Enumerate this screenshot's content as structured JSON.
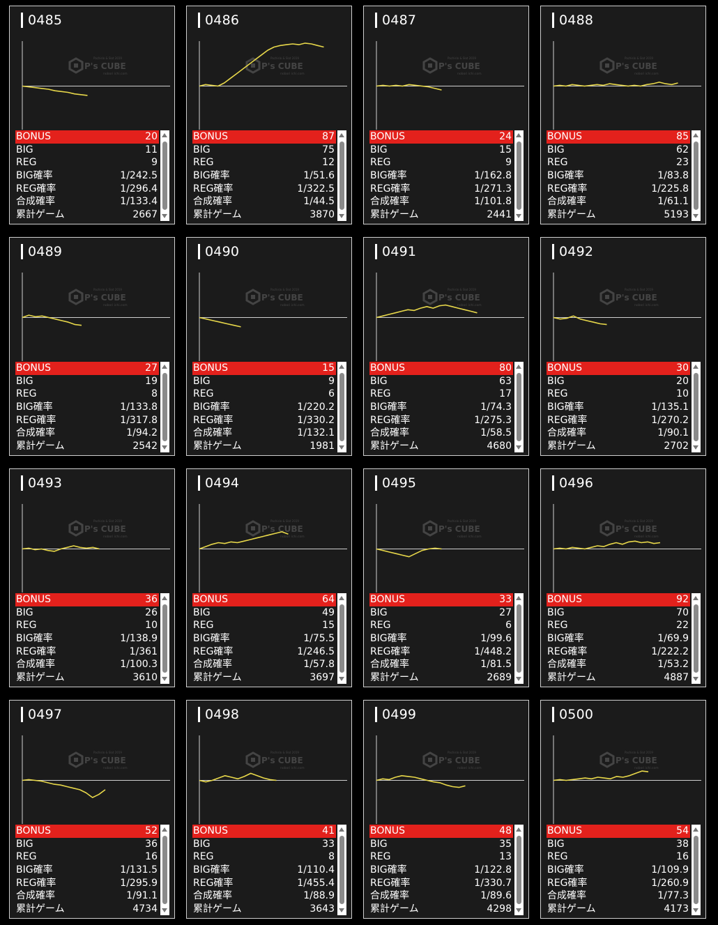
{
  "labels": {
    "bonus": "BONUS",
    "big": "BIG",
    "reg": "REG",
    "big_rate": "BIG確率",
    "reg_rate": "REG確率",
    "total_rate": "合成確率",
    "games": "累計ゲーム"
  },
  "watermark": {
    "logo": "P's CUBE",
    "line1": "Pachislo & Slot 2019",
    "line2": "nobori ichi.com"
  },
  "colors": {
    "bonus_row": "#e3211c",
    "graph_line": "#e8d84a",
    "card_bg": "#1b1b1b"
  },
  "machines": [
    {
      "id": "0485",
      "bonus": "20",
      "big": "11",
      "reg": "9",
      "big_rate": "1/242.5",
      "reg_rate": "1/296.4",
      "total_rate": "1/133.4",
      "games": "2667",
      "trend": [
        0,
        -1,
        -2,
        -3,
        -4,
        -6,
        -7,
        -8,
        -10,
        -11,
        -12
      ]
    },
    {
      "id": "0486",
      "bonus": "87",
      "big": "75",
      "reg": "12",
      "big_rate": "1/51.6",
      "reg_rate": "1/322.5",
      "total_rate": "1/44.5",
      "games": "3870",
      "trend": [
        0,
        2,
        1,
        0,
        4,
        10,
        16,
        22,
        28,
        34,
        40,
        46,
        50,
        52,
        53,
        54,
        53,
        55,
        54,
        52,
        50
      ]
    },
    {
      "id": "0487",
      "bonus": "24",
      "big": "15",
      "reg": "9",
      "big_rate": "1/162.8",
      "reg_rate": "1/271.3",
      "total_rate": "1/101.8",
      "games": "2441",
      "trend": [
        0,
        1,
        0,
        1,
        0,
        2,
        1,
        0,
        -1,
        -3,
        -5
      ]
    },
    {
      "id": "0488",
      "bonus": "85",
      "big": "62",
      "reg": "23",
      "big_rate": "1/83.8",
      "reg_rate": "1/225.8",
      "total_rate": "1/61.1",
      "games": "5193",
      "trend": [
        0,
        1,
        0,
        2,
        1,
        0,
        1,
        2,
        1,
        3,
        2,
        1,
        0,
        1,
        0,
        2,
        3,
        5,
        3,
        2,
        4
      ]
    },
    {
      "id": "0489",
      "bonus": "27",
      "big": "19",
      "reg": "8",
      "big_rate": "1/133.8",
      "reg_rate": "1/317.8",
      "total_rate": "1/94.2",
      "games": "2542",
      "trend": [
        0,
        3,
        1,
        2,
        0,
        -2,
        -4,
        -6,
        -9,
        -10
      ]
    },
    {
      "id": "0490",
      "bonus": "15",
      "big": "9",
      "reg": "6",
      "big_rate": "1/220.2",
      "reg_rate": "1/330.2",
      "total_rate": "1/132.1",
      "games": "1981",
      "trend": [
        0,
        -2,
        -4,
        -6,
        -8,
        -10,
        -12
      ]
    },
    {
      "id": "0491",
      "bonus": "80",
      "big": "63",
      "reg": "17",
      "big_rate": "1/74.3",
      "reg_rate": "1/275.3",
      "total_rate": "1/58.5",
      "games": "4680",
      "trend": [
        0,
        2,
        4,
        6,
        8,
        10,
        9,
        12,
        14,
        12,
        15,
        16,
        14,
        12,
        10,
        8,
        6
      ]
    },
    {
      "id": "0492",
      "bonus": "30",
      "big": "20",
      "reg": "10",
      "big_rate": "1/135.1",
      "reg_rate": "1/270.2",
      "total_rate": "1/90.1",
      "games": "2702",
      "trend": [
        0,
        -2,
        -1,
        2,
        -2,
        -4,
        -6,
        -8,
        -9
      ]
    },
    {
      "id": "0493",
      "bonus": "36",
      "big": "26",
      "reg": "10",
      "big_rate": "1/138.9",
      "reg_rate": "1/361",
      "total_rate": "1/100.3",
      "games": "3610",
      "trend": [
        0,
        1,
        -1,
        0,
        -2,
        -3,
        0,
        2,
        4,
        2,
        1,
        2,
        0
      ]
    },
    {
      "id": "0494",
      "bonus": "64",
      "big": "49",
      "reg": "15",
      "big_rate": "1/75.5",
      "reg_rate": "1/246.5",
      "total_rate": "1/57.8",
      "games": "3697",
      "trend": [
        0,
        3,
        6,
        8,
        7,
        9,
        8,
        10,
        12,
        14,
        16,
        18,
        20,
        22,
        19
      ]
    },
    {
      "id": "0495",
      "bonus": "33",
      "big": "27",
      "reg": "6",
      "big_rate": "1/99.6",
      "reg_rate": "1/448.2",
      "total_rate": "1/81.5",
      "games": "2689",
      "trend": [
        0,
        -2,
        -4,
        -6,
        -8,
        -10,
        -6,
        -2,
        0,
        1,
        0
      ]
    },
    {
      "id": "0496",
      "bonus": "92",
      "big": "70",
      "reg": "22",
      "big_rate": "1/69.9",
      "reg_rate": "1/222.2",
      "total_rate": "1/53.2",
      "games": "4887",
      "trend": [
        0,
        1,
        0,
        2,
        1,
        0,
        2,
        4,
        3,
        6,
        8,
        6,
        9,
        10,
        8,
        9,
        7,
        8
      ]
    },
    {
      "id": "0497",
      "bonus": "52",
      "big": "36",
      "reg": "16",
      "big_rate": "1/131.5",
      "reg_rate": "1/295.9",
      "total_rate": "1/91.1",
      "games": "4734",
      "trend": [
        0,
        1,
        0,
        -1,
        -3,
        -5,
        -6,
        -8,
        -10,
        -12,
        -16,
        -22,
        -18,
        -12
      ]
    },
    {
      "id": "0498",
      "bonus": "41",
      "big": "33",
      "reg": "8",
      "big_rate": "1/110.4",
      "reg_rate": "1/455.4",
      "total_rate": "1/88.9",
      "games": "3643",
      "trend": [
        0,
        -2,
        0,
        3,
        6,
        4,
        2,
        5,
        9,
        6,
        3,
        1,
        0
      ]
    },
    {
      "id": "0499",
      "bonus": "48",
      "big": "35",
      "reg": "13",
      "big_rate": "1/122.8",
      "reg_rate": "1/330.7",
      "total_rate": "1/89.6",
      "games": "4298",
      "trend": [
        0,
        2,
        1,
        4,
        6,
        5,
        4,
        2,
        0,
        -2,
        -3,
        -6,
        -8,
        -9,
        -7
      ]
    },
    {
      "id": "0500",
      "bonus": "54",
      "big": "38",
      "reg": "16",
      "big_rate": "1/109.9",
      "reg_rate": "1/260.9",
      "total_rate": "1/77.3",
      "games": "4173",
      "trend": [
        0,
        1,
        0,
        1,
        2,
        3,
        2,
        4,
        3,
        2,
        5,
        4,
        6,
        9,
        12,
        11
      ]
    }
  ]
}
